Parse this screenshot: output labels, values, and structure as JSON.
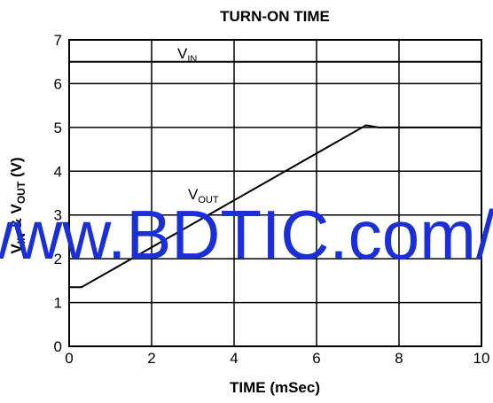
{
  "chart_data": {
    "type": "line",
    "title": "TURN-ON TIME",
    "xlabel": "TIME (mSec)",
    "ylabel": [
      "V",
      "IN",
      " & V",
      "OUT",
      " (V)"
    ],
    "xlim": [
      0,
      10
    ],
    "xticks": [
      0,
      2,
      4,
      6,
      8,
      10
    ],
    "ylim": [
      0,
      7
    ],
    "yticks": [
      0,
      1,
      2,
      3,
      4,
      5,
      6,
      7
    ],
    "grid": true,
    "series": [
      {
        "name": [
          "V",
          "IN"
        ],
        "color": "#000000",
        "x": [
          0,
          10
        ],
        "values": [
          6.5,
          6.5
        ]
      },
      {
        "name": [
          "V",
          "OUT"
        ],
        "color": "#000000",
        "x": [
          0,
          0.3,
          7.2,
          7.5,
          10
        ],
        "values": [
          1.35,
          1.35,
          5.05,
          5.0,
          5.0
        ]
      }
    ],
    "watermark": "www.BDTIC.com/"
  }
}
